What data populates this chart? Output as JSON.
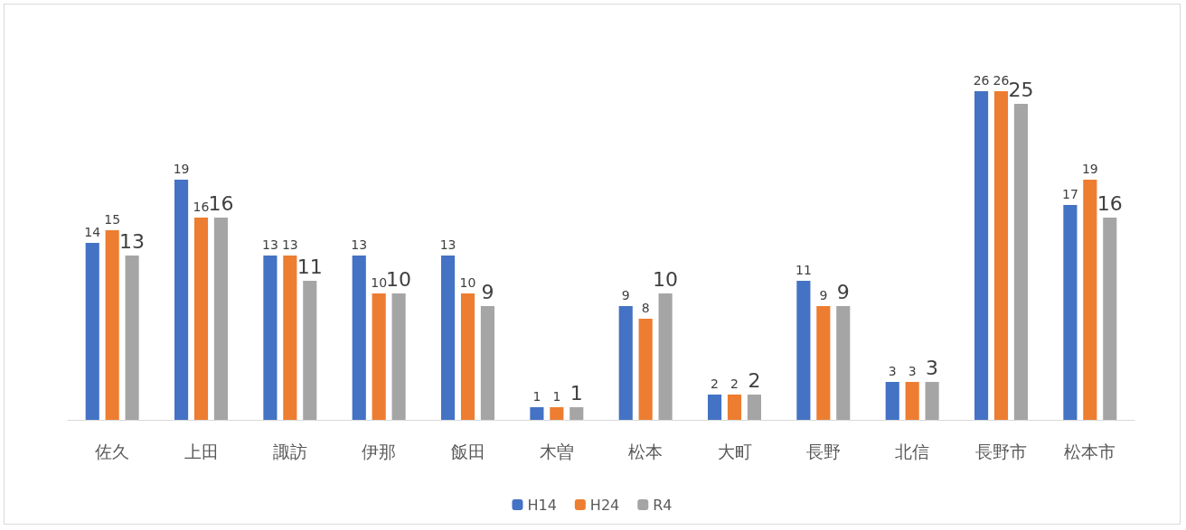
{
  "chart_data": {
    "type": "bar",
    "categories": [
      "佐久",
      "上田",
      "諏訪",
      "伊那",
      "飯田",
      "木曽",
      "松本",
      "大町",
      "長野",
      "北信",
      "長野市",
      "松本市"
    ],
    "series": [
      {
        "name": "H14",
        "color": "#4472c4",
        "values": [
          14,
          19,
          13,
          13,
          13,
          1,
          9,
          2,
          11,
          3,
          26,
          17
        ]
      },
      {
        "name": "H24",
        "color": "#ed7d31",
        "values": [
          15,
          16,
          13,
          10,
          10,
          1,
          8,
          2,
          9,
          3,
          26,
          19
        ]
      },
      {
        "name": "R4",
        "color": "#a5a5a5",
        "values": [
          13,
          16,
          11,
          10,
          9,
          1,
          10,
          2,
          9,
          3,
          25,
          16
        ]
      }
    ],
    "data_labels": true,
    "grid": false,
    "legend": "bottom"
  }
}
